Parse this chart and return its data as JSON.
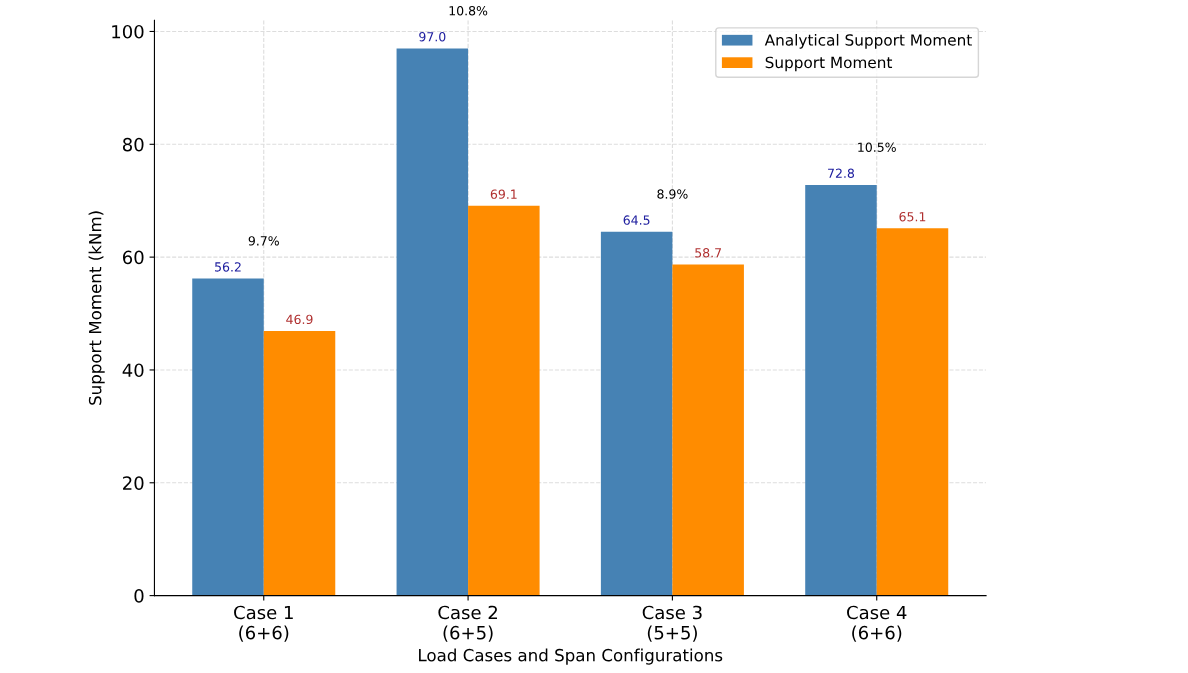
{
  "chart_data": {
    "type": "bar",
    "xlabel": "Load Cases and Span Configurations",
    "ylabel": "Support Moment (kNm)",
    "categories": [
      "Case 1\n(6+6)",
      "Case 2\n(6+5)",
      "Case 3\n(5+5)",
      "Case 4\n(6+6)"
    ],
    "series": [
      {
        "name": "Analytical Support Moment",
        "color": "#4682b4",
        "values": [
          56.2,
          97.0,
          64.5,
          72.8
        ],
        "value_labels": [
          "56.2",
          "97.0",
          "64.5",
          "72.8"
        ]
      },
      {
        "name": "Support Moment",
        "color": "#ff8c00",
        "values": [
          46.9,
          69.1,
          58.7,
          65.1
        ],
        "value_labels": [
          "46.9",
          "69.1",
          "58.7",
          "65.1"
        ]
      }
    ],
    "ylim": [
      0,
      102
    ],
    "yticks": [
      0,
      20,
      40,
      60,
      80,
      100
    ],
    "grid": true,
    "legend": "top right",
    "annotations": [
      "9.7%",
      "10.8%",
      "8.9%",
      "10.5%"
    ]
  }
}
